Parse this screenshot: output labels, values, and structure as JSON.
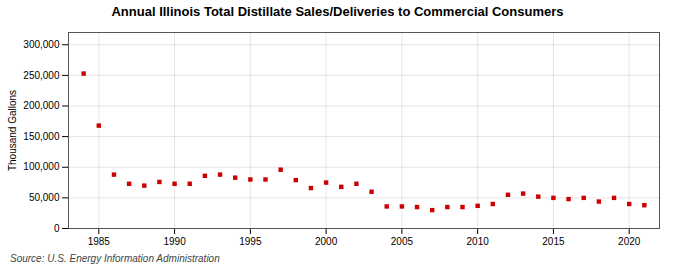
{
  "chart_data": {
    "type": "scatter",
    "title": "Annual Illinois Total Distillate Sales/Deliveries to Commercial Consumers",
    "ylabel": "Thousand Gallons",
    "annotations": [
      "Source: U.S. Energy Information Administration"
    ],
    "x": [
      1984,
      1985,
      1986,
      1987,
      1988,
      1989,
      1990,
      1991,
      1992,
      1993,
      1994,
      1995,
      1996,
      1997,
      1998,
      1999,
      2000,
      2001,
      2002,
      2003,
      2004,
      2005,
      2006,
      2007,
      2008,
      2009,
      2010,
      2011,
      2012,
      2013,
      2014,
      2015,
      2016,
      2017,
      2018,
      2019,
      2020,
      2021
    ],
    "values": [
      253000,
      168000,
      88000,
      73000,
      70000,
      76000,
      73000,
      73000,
      86000,
      88000,
      83000,
      80000,
      80000,
      96000,
      79000,
      66000,
      75000,
      68000,
      73000,
      60000,
      36000,
      36000,
      35000,
      30000,
      35000,
      35000,
      37000,
      40000,
      55000,
      57000,
      52000,
      50000,
      48000,
      50000,
      44000,
      50000,
      40000,
      38000
    ],
    "color": "#cc0000",
    "marker": "square",
    "xlim": [
      1983,
      2022
    ],
    "xticks": [
      1985,
      1990,
      1995,
      2000,
      2005,
      2010,
      2015,
      2020
    ],
    "ylim": [
      0,
      320000
    ],
    "yticks": [
      0,
      {
        "value": 50000,
        "label": "50,000"
      },
      {
        "value": 100000,
        "label": "100,000"
      },
      {
        "value": 150000,
        "label": "150,000"
      },
      {
        "value": 200000,
        "label": "200,000"
      },
      {
        "value": 250000,
        "label": "250,000"
      },
      {
        "value": 300000,
        "label": "300,000"
      }
    ],
    "grid": true
  }
}
